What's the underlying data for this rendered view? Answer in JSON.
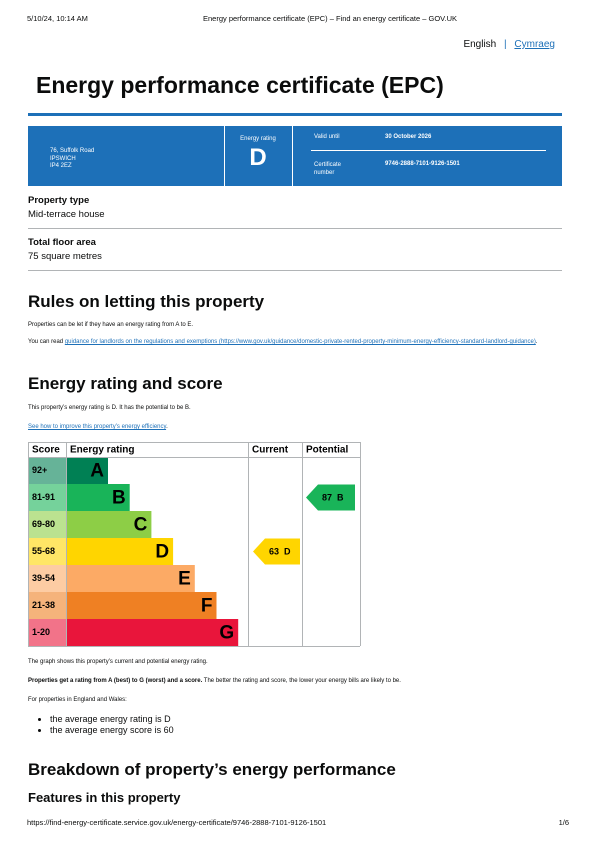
{
  "print_header": {
    "datetime": "5/10/24, 10:14 AM",
    "title": "Energy performance certificate (EPC) – Find an energy certificate – GOV.UK"
  },
  "language": {
    "english": "English",
    "welsh": "Cymraeg"
  },
  "title": "Energy performance certificate (EPC)",
  "summary": {
    "address": [
      "76, Suffolk Road",
      "IPSWICH",
      "IP4 2EZ"
    ],
    "rating_label": "Energy rating",
    "rating": "D",
    "valid_until_label": "Valid until",
    "valid_until": "30 October 2026",
    "certificate_label": "Certificate number",
    "certificate_number": "9746-2888-7101-9126-1501"
  },
  "property": [
    {
      "label": "Property type",
      "value": "Mid-terrace house"
    },
    {
      "label": "Total floor area",
      "value": "75 square metres"
    }
  ],
  "letting": {
    "heading": "Rules on letting this property",
    "para1": "Properties can be let if they have an energy rating from A to E.",
    "para2_start": "You can read ",
    "para2_link": "guidance for landlords on the regulations and exemptions (https://www.gov.uk/guidance/domestic-private-rented-property-minimum-energy-efficiency-standard-landlord-guidance)",
    "para2_end": "."
  },
  "rating_section": {
    "heading": "Energy rating and score",
    "intro": "This property’s energy rating is D. It has the potential to be B.",
    "link": "See how to improve this property’s energy efficiency",
    "link_end": "."
  },
  "rating_chart": {
    "headers": [
      "Score",
      "Energy rating",
      "Current",
      "Potential"
    ],
    "bands": [
      {
        "score": "92+",
        "band": "A",
        "color": "#008054",
        "score_color": "#66b398"
      },
      {
        "score": "81-91",
        "band": "B",
        "color": "#19b459",
        "score_color": "#75d29b"
      },
      {
        "score": "69-80",
        "band": "C",
        "color": "#8dce46",
        "score_color": "#bbe290"
      },
      {
        "score": "55-68",
        "band": "D",
        "color": "#ffd500",
        "score_color": "#ffe666"
      },
      {
        "score": "39-54",
        "band": "E",
        "color": "#fcaa65",
        "score_color": "#fdcca3"
      },
      {
        "score": "21-38",
        "band": "F",
        "color": "#ef8023",
        "score_color": "#f5b37b"
      },
      {
        "score": "1-20",
        "band": "G",
        "color": "#e9153b",
        "score_color": "#f27389"
      }
    ],
    "current": {
      "score": 63,
      "band": "D"
    },
    "potential": {
      "score": 87,
      "band": "B"
    }
  },
  "after_chart": {
    "graph_note": "The graph shows this property’s current and potential energy rating.",
    "bold": "Properties get a rating from A (best) to G (worst) and a score.",
    "rest": " The better the rating and score, the lower your energy bills are likely to be.",
    "wales": "For properties in England and Wales:",
    "averages": [
      "the average energy rating is D",
      "the average energy score is 60"
    ]
  },
  "breakdown": {
    "heading": "Breakdown of property’s energy performance",
    "subheading": "Features in this property"
  },
  "footer": {
    "url": "https://find-energy-certificate.service.gov.uk/energy-certificate/9746-2888-7101-9126-1501",
    "page": "1/6"
  }
}
